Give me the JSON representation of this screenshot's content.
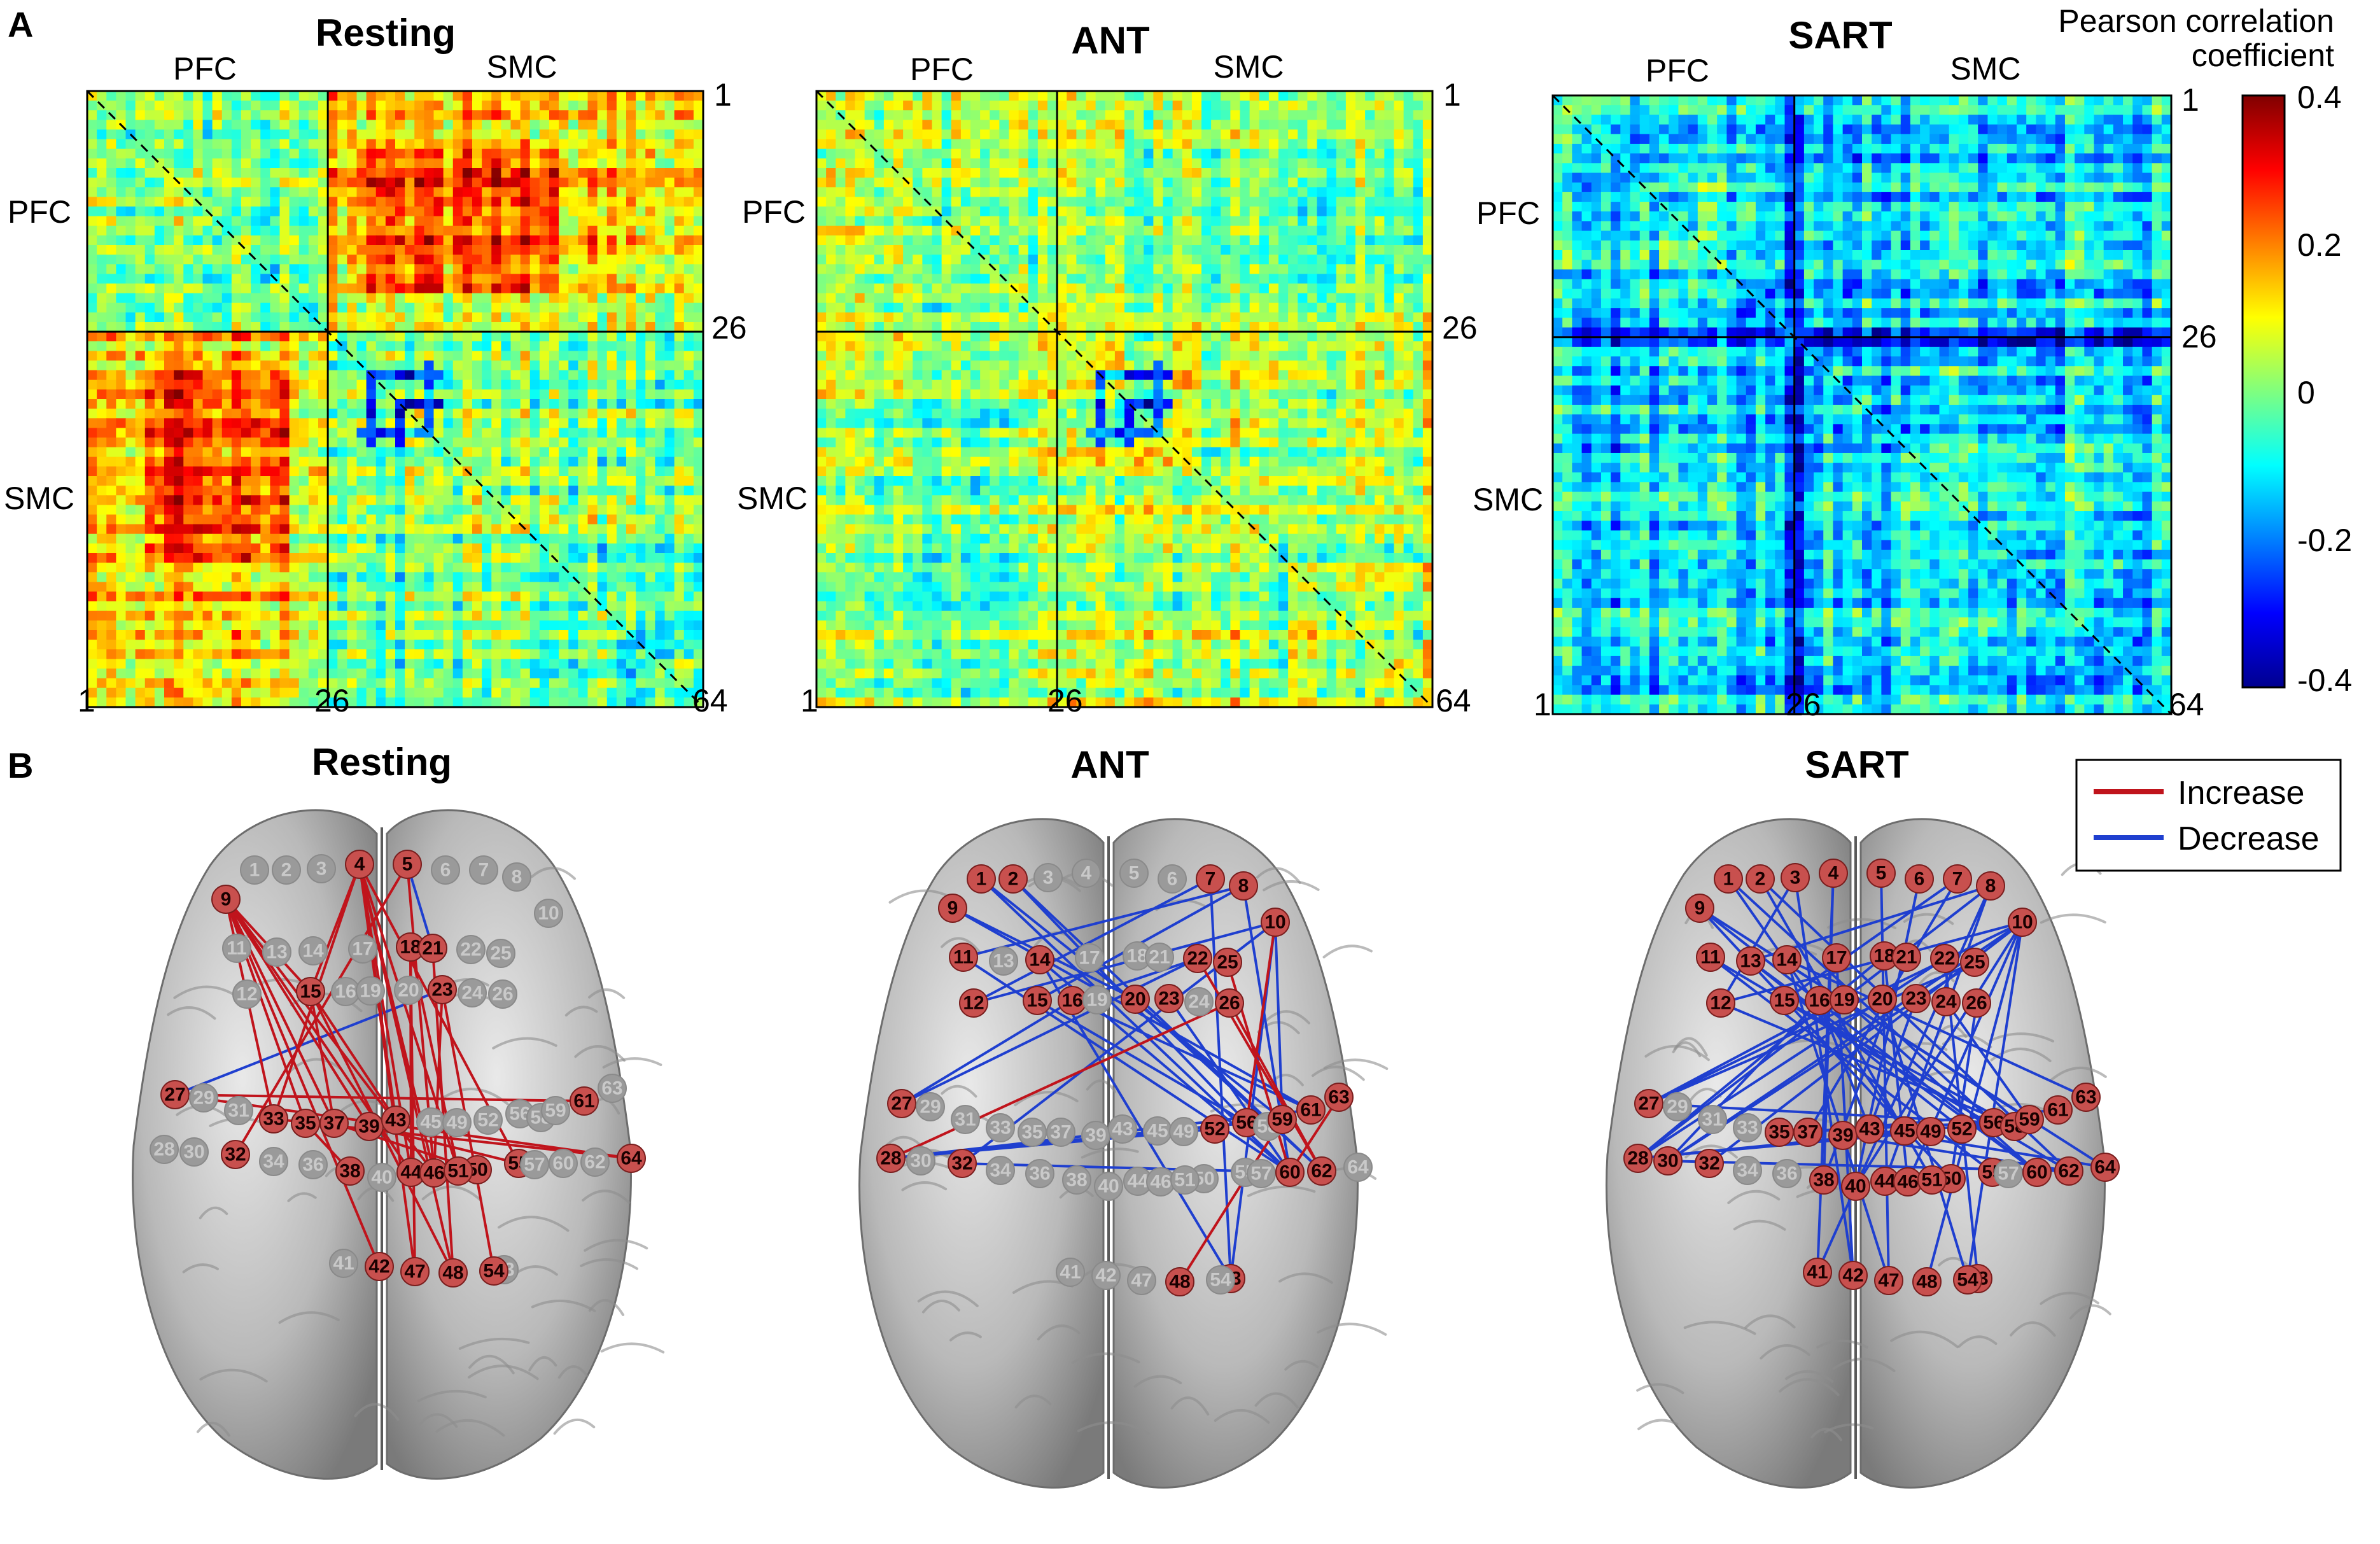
{
  "panel_a": {
    "letter": "A",
    "matrices": [
      {
        "title": "Resting",
        "regions": {
          "pfc": "PFC",
          "smc": "SMC"
        },
        "ticks": {
          "start": "1",
          "mid": "26",
          "end": "64"
        },
        "tone": "rest"
      },
      {
        "title": "ANT",
        "regions": {
          "pfc": "PFC",
          "smc": "SMC"
        },
        "ticks": {
          "start": "1",
          "mid": "26",
          "end": "64"
        },
        "tone": "ant"
      },
      {
        "title": "SART",
        "regions": {
          "pfc": "PFC",
          "smc": "SMC"
        },
        "ticks": {
          "start": "1",
          "mid": "26",
          "end": "64"
        },
        "tone": "sart"
      }
    ],
    "colorbar": {
      "title_line1": "Pearson correlation",
      "title_line2": "coefficient",
      "ticks": [
        "0.4",
        "0.2",
        "0",
        "-0.2",
        "-0.4"
      ],
      "range": [
        -0.4,
        0.4
      ]
    }
  },
  "panel_b": {
    "letter": "B",
    "legend": {
      "increase": {
        "label": "Increase",
        "color": "#c0141c"
      },
      "decrease": {
        "label": "Decrease",
        "color": "#1f3fcf"
      }
    },
    "brains": [
      {
        "title": "Resting",
        "active_nodes": [
          "4",
          "5",
          "9",
          "15",
          "18",
          "21",
          "23",
          "27",
          "32",
          "33",
          "35",
          "37",
          "38",
          "39",
          "42",
          "43",
          "44",
          "46",
          "47",
          "48",
          "50",
          "51",
          "54",
          "55",
          "61",
          "64"
        ],
        "increase_edges": [
          [
            "9",
            "15"
          ],
          [
            "9",
            "33"
          ],
          [
            "9",
            "35"
          ],
          [
            "9",
            "37"
          ],
          [
            "9",
            "39"
          ],
          [
            "9",
            "42"
          ],
          [
            "9",
            "46"
          ],
          [
            "4",
            "15"
          ],
          [
            "4",
            "43"
          ],
          [
            "4",
            "44"
          ],
          [
            "4",
            "46"
          ],
          [
            "4",
            "47"
          ],
          [
            "4",
            "51"
          ],
          [
            "4",
            "48"
          ],
          [
            "4",
            "55"
          ],
          [
            "4",
            "33"
          ],
          [
            "15",
            "37"
          ],
          [
            "15",
            "43"
          ],
          [
            "18",
            "44"
          ],
          [
            "18",
            "47"
          ],
          [
            "18",
            "51"
          ],
          [
            "23",
            "46"
          ],
          [
            "23",
            "54"
          ],
          [
            "5",
            "46"
          ],
          [
            "5",
            "32"
          ],
          [
            "21",
            "48"
          ],
          [
            "27",
            "61"
          ],
          [
            "27",
            "64"
          ],
          [
            "33",
            "64"
          ],
          [
            "35",
            "38"
          ],
          [
            "37",
            "50"
          ],
          [
            "39",
            "55"
          ],
          [
            "15",
            "48"
          ],
          [
            "9",
            "44"
          ]
        ],
        "decrease_edges": [
          [
            "27",
            "23"
          ],
          [
            "5",
            "21"
          ]
        ]
      },
      {
        "title": "ANT",
        "active_nodes": [
          "1",
          "2",
          "7",
          "8",
          "9",
          "10",
          "11",
          "12",
          "14",
          "15",
          "16",
          "20",
          "22",
          "23",
          "25",
          "26",
          "27",
          "28",
          "32",
          "48",
          "52",
          "53",
          "56",
          "59",
          "60",
          "61",
          "62",
          "63"
        ],
        "increase_edges": [
          [
            "28",
            "26"
          ],
          [
            "63",
            "60"
          ],
          [
            "48",
            "59"
          ],
          [
            "25",
            "60"
          ],
          [
            "26",
            "62"
          ],
          [
            "22",
            "62"
          ],
          [
            "10",
            "56"
          ]
        ],
        "decrease_edges": [
          [
            "27",
            "16"
          ],
          [
            "28",
            "52"
          ],
          [
            "28",
            "59"
          ],
          [
            "28",
            "56"
          ],
          [
            "32",
            "60"
          ],
          [
            "32",
            "10"
          ],
          [
            "1",
            "60"
          ],
          [
            "1",
            "59"
          ],
          [
            "2",
            "62"
          ],
          [
            "2",
            "56"
          ],
          [
            "9",
            "20"
          ],
          [
            "9",
            "61"
          ],
          [
            "11",
            "60"
          ],
          [
            "11",
            "8"
          ],
          [
            "12",
            "7"
          ],
          [
            "12",
            "10"
          ],
          [
            "14",
            "60"
          ],
          [
            "14",
            "53"
          ],
          [
            "15",
            "8"
          ],
          [
            "15",
            "56"
          ],
          [
            "16",
            "61"
          ],
          [
            "16",
            "22"
          ],
          [
            "20",
            "62"
          ],
          [
            "23",
            "60"
          ],
          [
            "7",
            "53"
          ],
          [
            "8",
            "60"
          ],
          [
            "10",
            "53"
          ],
          [
            "10",
            "59"
          ],
          [
            "27",
            "22"
          ],
          [
            "28",
            "61"
          ]
        ]
      },
      {
        "title": "SART",
        "active_nodes": [
          "1",
          "2",
          "3",
          "4",
          "5",
          "6",
          "7",
          "8",
          "9",
          "10",
          "11",
          "12",
          "13",
          "14",
          "15",
          "16",
          "17",
          "18",
          "19",
          "20",
          "21",
          "22",
          "23",
          "24",
          "25",
          "26",
          "27",
          "28",
          "30",
          "32",
          "35",
          "37",
          "38",
          "39",
          "40",
          "41",
          "42",
          "43",
          "44",
          "45",
          "46",
          "47",
          "48",
          "49",
          "50",
          "51",
          "52",
          "53",
          "54",
          "55",
          "56",
          "58",
          "59",
          "60",
          "61",
          "62",
          "63",
          "64"
        ],
        "increase_edges": [],
        "decrease_edges": [
          [
            "27",
            "10"
          ],
          [
            "27",
            "19"
          ],
          [
            "27",
            "25"
          ],
          [
            "28",
            "8"
          ],
          [
            "28",
            "22"
          ],
          [
            "28",
            "59"
          ],
          [
            "28",
            "49"
          ],
          [
            "30",
            "10"
          ],
          [
            "30",
            "16"
          ],
          [
            "9",
            "59"
          ],
          [
            "9",
            "50"
          ],
          [
            "9",
            "64"
          ],
          [
            "9",
            "60"
          ],
          [
            "1",
            "56"
          ],
          [
            "1",
            "45"
          ],
          [
            "2",
            "51"
          ],
          [
            "2",
            "62"
          ],
          [
            "3",
            "42"
          ],
          [
            "3",
            "12"
          ],
          [
            "4",
            "38"
          ],
          [
            "4",
            "41"
          ],
          [
            "7",
            "15"
          ],
          [
            "7",
            "37"
          ],
          [
            "8",
            "44"
          ],
          [
            "8",
            "41"
          ],
          [
            "10",
            "48"
          ],
          [
            "10",
            "40"
          ],
          [
            "10",
            "54"
          ],
          [
            "10",
            "46"
          ],
          [
            "11",
            "62"
          ],
          [
            "11",
            "55"
          ],
          [
            "12",
            "58"
          ],
          [
            "13",
            "52"
          ],
          [
            "13",
            "60"
          ],
          [
            "14",
            "63"
          ],
          [
            "14",
            "47"
          ],
          [
            "17",
            "42"
          ],
          [
            "18",
            "46"
          ],
          [
            "18",
            "28"
          ],
          [
            "19",
            "60"
          ],
          [
            "20",
            "54"
          ],
          [
            "21",
            "38"
          ],
          [
            "22",
            "53"
          ],
          [
            "23",
            "43"
          ],
          [
            "24",
            "59"
          ],
          [
            "25",
            "30"
          ],
          [
            "26",
            "50"
          ],
          [
            "27",
            "56"
          ],
          [
            "5",
            "47"
          ],
          [
            "6",
            "40"
          ],
          [
            "15",
            "58"
          ],
          [
            "16",
            "43"
          ],
          [
            "39",
            "62"
          ],
          [
            "37",
            "61"
          ],
          [
            "35",
            "56"
          ],
          [
            "43",
            "64"
          ],
          [
            "12",
            "10"
          ],
          [
            "13",
            "8"
          ],
          [
            "32",
            "10"
          ],
          [
            "30",
            "62"
          ]
        ]
      }
    ]
  }
}
